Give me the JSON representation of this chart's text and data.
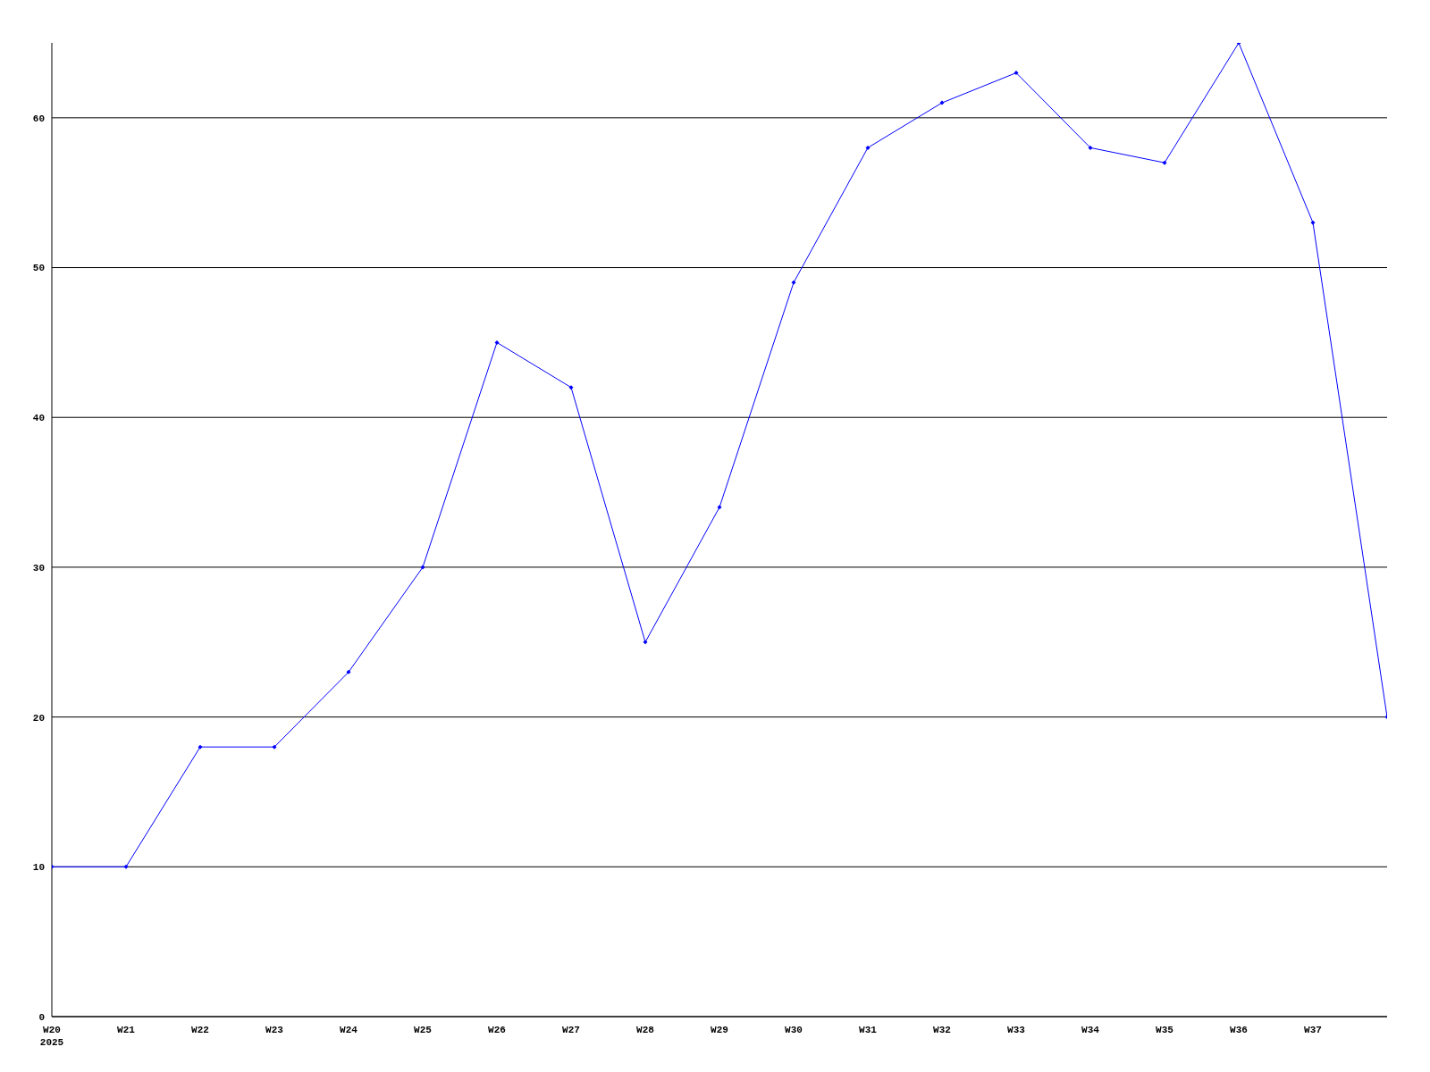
{
  "chart_data": {
    "type": "line",
    "categories": [
      "W20\n2025",
      "W21",
      "W22",
      "W23",
      "W24",
      "W25",
      "W26",
      "W27",
      "W28",
      "W29",
      "W30",
      "W31",
      "W32",
      "W33",
      "W34",
      "W35",
      "W36",
      "W37",
      null
    ],
    "series": [
      {
        "color": "#0000ff",
        "values": [
          10,
          10,
          18,
          18,
          23,
          30,
          45,
          42,
          25,
          34,
          49,
          58,
          61,
          63,
          58,
          57,
          65,
          53,
          20
        ]
      }
    ],
    "ylim": [
      0,
      65
    ],
    "yticks": [
      0,
      10,
      20,
      30,
      40,
      50,
      60
    ],
    "grid": "y",
    "legend": false,
    "marker": "diamond",
    "line_style": "solid"
  }
}
